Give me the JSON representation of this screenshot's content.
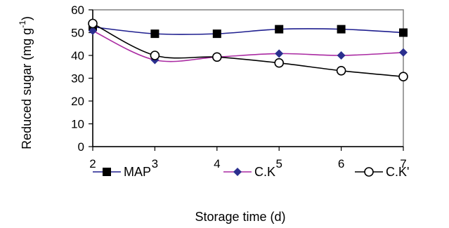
{
  "chart_data": {
    "type": "line",
    "xlabel": "Storage time (d)",
    "ylabel": "Reduced sugar (mg g",
    "ylabel_sup": "-1",
    "ylabel_close": ")",
    "x": [
      2,
      3,
      4,
      5,
      6,
      7
    ],
    "xticks": [
      "2",
      "3",
      "4",
      "5",
      "6",
      "7"
    ],
    "yticks": [
      "0",
      "10",
      "20",
      "30",
      "40",
      "50",
      "60"
    ],
    "xlim": [
      2,
      7
    ],
    "ylim": [
      0,
      60
    ],
    "grid": false,
    "legend_position": "bottom",
    "series": [
      {
        "name": "MAP",
        "values": [
          52.5,
          49.5,
          49.5,
          51.5,
          51.5,
          50.0
        ],
        "color": "#1f1f8f",
        "marker": "square-filled",
        "marker_color": "#000000"
      },
      {
        "name": "C.K",
        "values": [
          50.8,
          38.0,
          39.3,
          40.8,
          40.0,
          41.3
        ],
        "color": "#aa2aa2",
        "marker": "diamond-filled",
        "marker_color": "#2b2f8f"
      },
      {
        "name": "C.K'",
        "values": [
          54.0,
          40.0,
          39.3,
          36.7,
          33.3,
          30.7
        ],
        "color": "#000000",
        "marker": "circle-open",
        "marker_color": "#000000"
      }
    ]
  }
}
